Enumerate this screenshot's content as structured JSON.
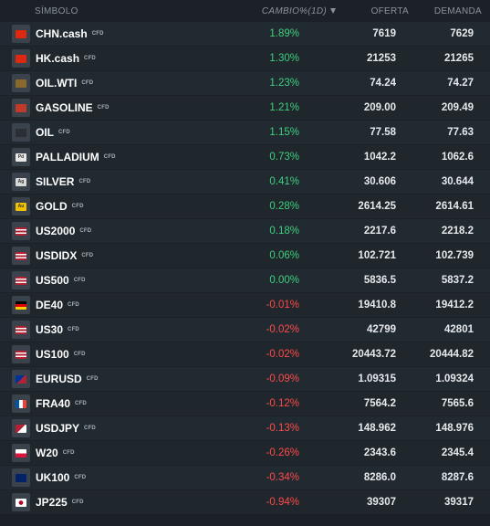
{
  "header": {
    "symbol": "SÍMBOLO",
    "change": "CAMBIO%(1D)",
    "bid": "OFERTA",
    "ask": "DEMANDA"
  },
  "colors": {
    "positive": "#3ed07f",
    "negative": "#ff4a4a"
  },
  "rows": [
    {
      "symbol": "CHN.cash",
      "tag": "CFD",
      "change": "1.89%",
      "bid": "7619",
      "ask": "7629",
      "icon": "china-flag-icon",
      "dir": "pos"
    },
    {
      "symbol": "HK.cash",
      "tag": "CFD",
      "change": "1.30%",
      "bid": "21253",
      "ask": "21265",
      "icon": "hong-kong-flag-icon",
      "dir": "pos"
    },
    {
      "symbol": "OIL.WTI",
      "tag": "CFD",
      "change": "1.23%",
      "bid": "74.24",
      "ask": "74.27",
      "icon": "oil-barrel-icon",
      "dir": "pos"
    },
    {
      "symbol": "GASOLINE",
      "tag": "CFD",
      "change": "1.21%",
      "bid": "209.00",
      "ask": "209.49",
      "icon": "gasoline-icon",
      "dir": "pos"
    },
    {
      "symbol": "OIL",
      "tag": "CFD",
      "change": "1.15%",
      "bid": "77.58",
      "ask": "77.63",
      "icon": "oil-drop-icon",
      "dir": "pos"
    },
    {
      "symbol": "PALLADIUM",
      "tag": "CFD",
      "change": "0.73%",
      "bid": "1042.2",
      "ask": "1062.6",
      "icon": "palladium-icon",
      "badge": "Pd",
      "dir": "pos"
    },
    {
      "symbol": "SILVER",
      "tag": "CFD",
      "change": "0.41%",
      "bid": "30.606",
      "ask": "30.644",
      "icon": "silver-icon",
      "badge": "Ag",
      "dir": "pos"
    },
    {
      "symbol": "GOLD",
      "tag": "CFD",
      "change": "0.28%",
      "bid": "2614.25",
      "ask": "2614.61",
      "icon": "gold-icon",
      "badge": "Au",
      "dir": "pos"
    },
    {
      "symbol": "US2000",
      "tag": "CFD",
      "change": "0.18%",
      "bid": "2217.6",
      "ask": "2218.2",
      "icon": "usa-flag-icon",
      "dir": "pos"
    },
    {
      "symbol": "USDIDX",
      "tag": "CFD",
      "change": "0.06%",
      "bid": "102.721",
      "ask": "102.739",
      "icon": "usa-flag-icon",
      "dir": "pos"
    },
    {
      "symbol": "US500",
      "tag": "CFD",
      "change": "0.00%",
      "bid": "5836.5",
      "ask": "5837.2",
      "icon": "usa-flag-icon",
      "dir": "pos"
    },
    {
      "symbol": "DE40",
      "tag": "CFD",
      "change": "-0.01%",
      "bid": "19410.8",
      "ask": "19412.2",
      "icon": "germany-flag-icon",
      "dir": "neg"
    },
    {
      "symbol": "US30",
      "tag": "CFD",
      "change": "-0.02%",
      "bid": "42799",
      "ask": "42801",
      "icon": "usa-flag-icon",
      "dir": "neg"
    },
    {
      "symbol": "US100",
      "tag": "CFD",
      "change": "-0.02%",
      "bid": "20443.72",
      "ask": "20444.82",
      "icon": "usa-flag-icon",
      "dir": "neg"
    },
    {
      "symbol": "EURUSD",
      "tag": "CFD",
      "change": "-0.09%",
      "bid": "1.09315",
      "ask": "1.09324",
      "icon": "eu-us-flag-icon",
      "dir": "neg"
    },
    {
      "symbol": "FRA40",
      "tag": "CFD",
      "change": "-0.12%",
      "bid": "7564.2",
      "ask": "7565.6",
      "icon": "france-flag-icon",
      "dir": "neg"
    },
    {
      "symbol": "USDJPY",
      "tag": "CFD",
      "change": "-0.13%",
      "bid": "148.962",
      "ask": "148.976",
      "icon": "us-japan-flag-icon",
      "dir": "neg"
    },
    {
      "symbol": "W20",
      "tag": "CFD",
      "change": "-0.26%",
      "bid": "2343.6",
      "ask": "2345.4",
      "icon": "poland-flag-icon",
      "dir": "neg"
    },
    {
      "symbol": "UK100",
      "tag": "CFD",
      "change": "-0.34%",
      "bid": "8286.0",
      "ask": "8287.6",
      "icon": "uk-flag-icon",
      "dir": "neg"
    },
    {
      "symbol": "JP225",
      "tag": "CFD",
      "change": "-0.94%",
      "bid": "39307",
      "ask": "39317",
      "icon": "japan-flag-icon",
      "dir": "neg"
    }
  ]
}
